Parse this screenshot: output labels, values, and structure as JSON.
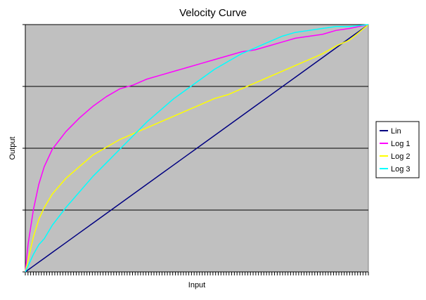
{
  "chart_data": {
    "type": "line",
    "title": "Velocity Curve",
    "xlabel": "Input",
    "ylabel": "Output",
    "xlim": [
      0,
      127
    ],
    "ylim": [
      0,
      127
    ],
    "x_tick_count": 128,
    "y_gridlines": [
      31.75,
      63.5,
      95.25,
      127
    ],
    "grid": "horizontal",
    "legend_position": "right",
    "background_color": "#c0c0c0",
    "x": [
      0,
      1,
      3,
      5,
      7,
      10,
      15,
      20,
      25,
      30,
      35,
      40,
      45,
      50,
      55,
      60,
      65,
      70,
      75,
      80,
      85,
      90,
      95,
      100,
      105,
      110,
      115,
      120,
      127
    ],
    "series": [
      {
        "name": "Lin",
        "color": "#000080",
        "values": [
          0,
          1,
          3,
          5,
          7,
          10,
          15,
          20,
          25,
          30,
          35,
          40,
          45,
          50,
          55,
          60,
          65,
          70,
          75,
          80,
          85,
          90,
          95,
          100,
          105,
          110,
          115,
          120,
          127
        ]
      },
      {
        "name": "Log 1",
        "color": "#ff00ff",
        "values": [
          0,
          14,
          32,
          45,
          54,
          63,
          72,
          79,
          85,
          90,
          94,
          96,
          99,
          101,
          103,
          105,
          107,
          109,
          111,
          113,
          114,
          116,
          118,
          120,
          121,
          122,
          124,
          125,
          127
        ]
      },
      {
        "name": "Log 2",
        "color": "#ffff00",
        "values": [
          0,
          6,
          18,
          27,
          33,
          40,
          48,
          54,
          60,
          64,
          68,
          71,
          74,
          77,
          80,
          83,
          86,
          89,
          91,
          94,
          97,
          100,
          103,
          106,
          109,
          112,
          116,
          119,
          127
        ]
      },
      {
        "name": "Log 3",
        "color": "#00ffff",
        "values": [
          0,
          3,
          9,
          14,
          17,
          24,
          33,
          41,
          49,
          56,
          63,
          70,
          77,
          83,
          89,
          94,
          99,
          104,
          108,
          112,
          115,
          118,
          121,
          123,
          124,
          125,
          126,
          126,
          127
        ]
      }
    ]
  }
}
